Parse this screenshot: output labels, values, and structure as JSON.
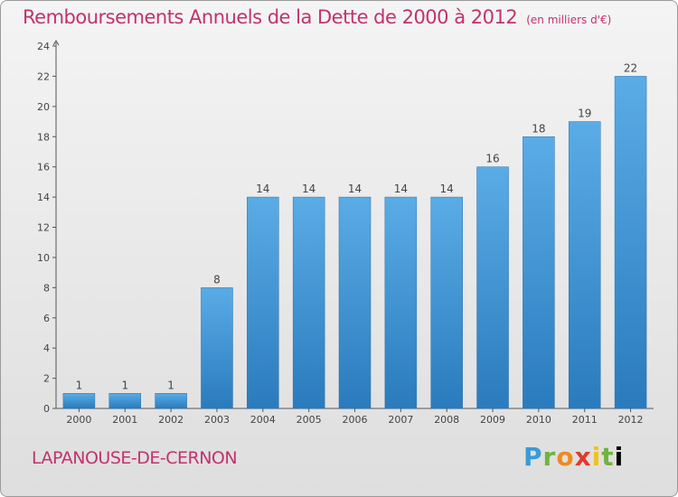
{
  "chart_data": {
    "type": "bar",
    "title": "Remboursements Annuels de la Dette de 2000 à 2012",
    "subtitle": "(en milliers d'€)",
    "categories": [
      "2000",
      "2001",
      "2002",
      "2003",
      "2004",
      "2005",
      "2006",
      "2007",
      "2008",
      "2009",
      "2010",
      "2011",
      "2012"
    ],
    "values": [
      1,
      1,
      1,
      8,
      14,
      14,
      14,
      14,
      14,
      16,
      18,
      19,
      22
    ],
    "ylim": [
      0,
      24
    ],
    "yticks": [
      0,
      2,
      4,
      6,
      8,
      10,
      12,
      14,
      16,
      18,
      20,
      22,
      24
    ],
    "grid": false,
    "legend": "none",
    "bar_color": "#3d8fd1"
  },
  "footer": {
    "city": "LAPANOUSE-DE-CERNON",
    "brand_letters": [
      "P",
      "r",
      "o",
      "x",
      "i",
      "t",
      "i"
    ]
  },
  "colors": {
    "title": "#c0336e",
    "axis": "#555555"
  }
}
